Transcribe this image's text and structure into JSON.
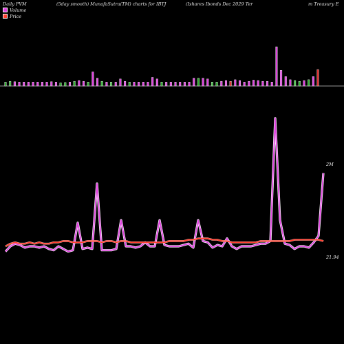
{
  "header": {
    "t1": "Daily PVM",
    "t2": "(5day smooth) MunafaSutra(TM) charts for IBTJ",
    "t3": "(Ishares Ibonds Dec 2029 Ter",
    "t4": "m Treasury E"
  },
  "legend": {
    "volume_label": "Volume",
    "price_label": "Price",
    "volume_color": "#e040e0",
    "price_color": "#ff4030"
  },
  "axis_labels": {
    "volume_max": "2M",
    "price_last": "21.94"
  },
  "chart_data": {
    "type": "line",
    "volume_bars": [
      0.1,
      0.12,
      0.11,
      0.1,
      0.1,
      0.1,
      0.1,
      0.1,
      0.1,
      0.1,
      0.11,
      0.1,
      0.08,
      0.09,
      0.1,
      0.12,
      0.14,
      0.12,
      0.1,
      0.36,
      0.2,
      0.12,
      0.1,
      0.1,
      0.1,
      0.18,
      0.12,
      0.1,
      0.1,
      0.1,
      0.1,
      0.1,
      0.22,
      0.18,
      0.1,
      0.1,
      0.1,
      0.1,
      0.1,
      0.1,
      0.1,
      0.2,
      0.2,
      0.2,
      0.18,
      0.1,
      0.1,
      0.12,
      0.14,
      0.12,
      0.16,
      0.14,
      0.1,
      0.12,
      0.15,
      0.14,
      0.12,
      0.12,
      0.1,
      1.0,
      0.4,
      0.24,
      0.16,
      0.14,
      0.12,
      0.14,
      0.16,
      0.24,
      0.42
    ],
    "volume_bar_colors": [
      "g",
      "g",
      "m",
      "m",
      "m",
      "m",
      "m",
      "m",
      "m",
      "m",
      "m",
      "m",
      "g",
      "g",
      "m",
      "g",
      "m",
      "m",
      "g",
      "m",
      "m",
      "g",
      "m",
      "g",
      "m",
      "m",
      "m",
      "g",
      "m",
      "m",
      "m",
      "m",
      "m",
      "m",
      "g",
      "m",
      "m",
      "m",
      "m",
      "m",
      "m",
      "m",
      "g",
      "m",
      "m",
      "g",
      "g",
      "m",
      "m",
      "r",
      "m",
      "m",
      "m",
      "m",
      "m",
      "m",
      "m",
      "m",
      "m",
      "m",
      "m",
      "m",
      "m",
      "g",
      "g",
      "m",
      "g",
      "m",
      "r"
    ],
    "volume_line": [
      0.06,
      0.1,
      0.12,
      0.11,
      0.09,
      0.1,
      0.1,
      0.09,
      0.1,
      0.08,
      0.07,
      0.1,
      0.08,
      0.06,
      0.07,
      0.28,
      0.08,
      0.09,
      0.08,
      0.58,
      0.07,
      0.07,
      0.07,
      0.08,
      0.3,
      0.1,
      0.1,
      0.09,
      0.1,
      0.13,
      0.1,
      0.1,
      0.3,
      0.11,
      0.1,
      0.1,
      0.1,
      0.11,
      0.12,
      0.09,
      0.3,
      0.14,
      0.13,
      0.09,
      0.11,
      0.1,
      0.16,
      0.1,
      0.08,
      0.1,
      0.1,
      0.1,
      0.11,
      0.12,
      0.12,
      0.14,
      1.08,
      0.3,
      0.12,
      0.11,
      0.08,
      0.1,
      0.1,
      0.09,
      0.13,
      0.18,
      0.66
    ],
    "price_line": [
      0.1,
      0.12,
      0.13,
      0.12,
      0.12,
      0.13,
      0.12,
      0.13,
      0.12,
      0.12,
      0.13,
      0.13,
      0.14,
      0.14,
      0.13,
      0.13,
      0.13,
      0.14,
      0.14,
      0.14,
      0.13,
      0.14,
      0.14,
      0.13,
      0.14,
      0.14,
      0.13,
      0.13,
      0.13,
      0.13,
      0.13,
      0.13,
      0.13,
      0.13,
      0.14,
      0.14,
      0.14,
      0.14,
      0.15,
      0.15,
      0.16,
      0.16,
      0.16,
      0.15,
      0.15,
      0.14,
      0.14,
      0.13,
      0.13,
      0.13,
      0.13,
      0.13,
      0.13,
      0.14,
      0.14,
      0.14,
      0.14,
      0.14,
      0.14,
      0.14,
      0.15,
      0.15,
      0.15,
      0.15,
      0.15,
      0.15,
      0.14
    ]
  }
}
